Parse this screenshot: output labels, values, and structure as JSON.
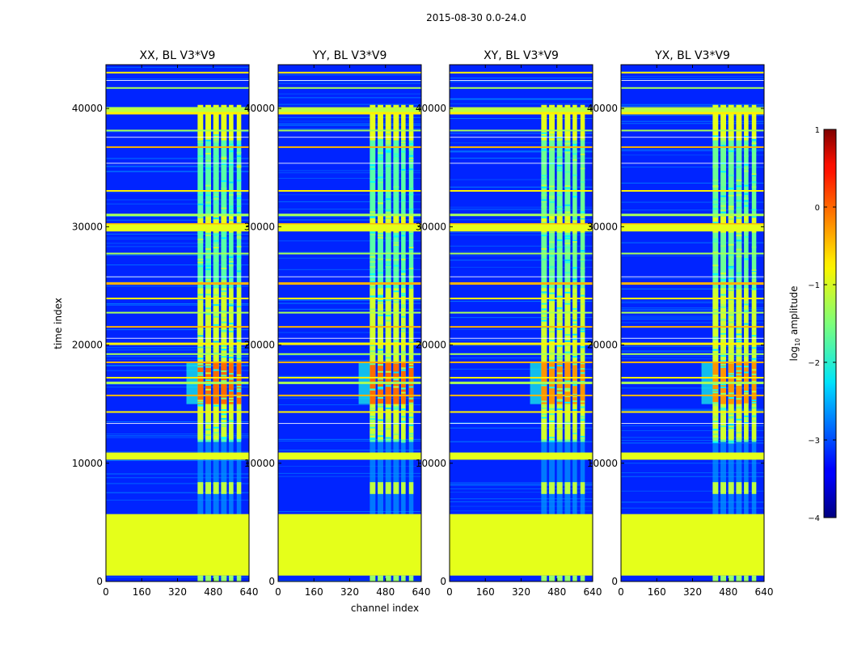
{
  "chart_data": {
    "type": "heatmap",
    "suptitle": "2015-08-30 0.0-24.0",
    "xlabel": "channel index",
    "ylabel": "time index",
    "xlim": [
      0,
      640
    ],
    "ylim": [
      0,
      43700
    ],
    "x_ticks": [
      0,
      160,
      320,
      480,
      640
    ],
    "y_ticks": [
      0,
      10000,
      20000,
      30000,
      40000
    ],
    "panels": [
      {
        "title": "XX, BL V3*V9",
        "polarization": "XX"
      },
      {
        "title": "YY, BL V3*V9",
        "polarization": "YY"
      },
      {
        "title": "XY, BL V3*V9",
        "polarization": "XY"
      },
      {
        "title": "YX, BL V3*V9",
        "polarization": "YX"
      }
    ],
    "colorbar": {
      "label": "log10 amplitude",
      "label_main": "log",
      "label_sub": "10",
      "label_tail": " amplitude",
      "colormap": "jet",
      "min": -4,
      "max": 1,
      "ticks": [
        -4,
        -3,
        -2,
        -1,
        0,
        1
      ],
      "tick_labels": [
        "−4",
        "−3",
        "−2",
        "−1",
        "0",
        "1"
      ]
    },
    "features": {
      "background_log_amp": -3.2,
      "flagged_block_time": [
        500,
        5700
      ],
      "flagged_block_log_amp": -1.0,
      "band_channels": [
        [
          410,
          435
        ],
        [
          445,
          470
        ],
        [
          480,
          505
        ],
        [
          515,
          540
        ],
        [
          550,
          570
        ],
        [
          585,
          605
        ]
      ],
      "band_active_time": [
        11800,
        38000
      ],
      "peak_time": [
        15000,
        18500
      ],
      "rfi_time_rows": [
        10600,
        10900,
        14400,
        15800,
        16900,
        17300,
        18600,
        19300,
        20200,
        21600,
        22800,
        24000,
        25300,
        27800,
        29800,
        30300,
        31100,
        33100,
        36800,
        38200,
        39700,
        40100,
        41800,
        43100
      ]
    }
  }
}
